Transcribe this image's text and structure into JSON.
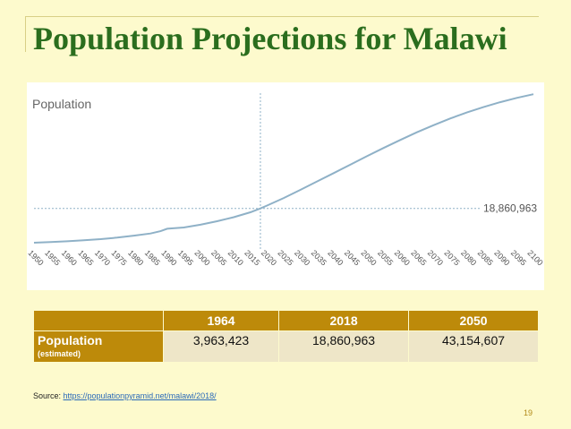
{
  "slide": {
    "title": "Population Projections for Malawi",
    "page_number": "19"
  },
  "source": {
    "prefix": "Source: ",
    "url_text": "https://populationpyramid.net/malawi/2018/"
  },
  "chart_data": {
    "type": "line",
    "title": "Population",
    "xlabel": "",
    "ylabel": "",
    "x_ticks": [
      "1950",
      "1955",
      "1960",
      "1965",
      "1970",
      "1975",
      "1980",
      "1985",
      "1990",
      "1995",
      "2000",
      "2005",
      "2010",
      "2015",
      "2020",
      "2025",
      "2030",
      "2035",
      "2040",
      "2045",
      "2050",
      "2055",
      "2060",
      "2065",
      "2070",
      "2075",
      "2080",
      "2085",
      "2090",
      "2095",
      "2100"
    ],
    "xlim": [
      1950,
      2100
    ],
    "ylim": [
      0,
      75000000
    ],
    "grid": false,
    "series": [
      {
        "values_x": [
          1950,
          1955,
          1960,
          1965,
          1970,
          1975,
          1980,
          1985,
          1988,
          1990,
          1995,
          2000,
          2005,
          2010,
          2015,
          2018,
          2020,
          2025,
          2030,
          2035,
          2040,
          2045,
          2050,
          2055,
          2060,
          2065,
          2070,
          2075,
          2080,
          2085,
          2090,
          2095,
          2100
        ],
        "values_y": [
          2900000,
          3200000,
          3600000,
          4100000,
          4600000,
          5300000,
          6200000,
          7200000,
          8300000,
          9400000,
          10000000,
          11300000,
          12900000,
          14800000,
          17100000,
          18860963,
          20200000,
          23700000,
          27500000,
          31400000,
          35300000,
          39200000,
          43154607,
          47000000,
          50700000,
          54300000,
          57600000,
          60700000,
          63500000,
          66000000,
          68300000,
          70300000,
          72000000
        ]
      }
    ],
    "annotations": [
      {
        "label": "18,860,963",
        "x": 2018,
        "y": 18860963
      }
    ],
    "colors": {
      "line": "#8fb1c7",
      "reference": "#8fb1c7",
      "text": "#666666"
    }
  },
  "table": {
    "headers": [
      "",
      "1964",
      "2018",
      "2050"
    ],
    "row_label": "Population",
    "row_sublabel": "(estimated)",
    "values": [
      "3,963,423",
      "18,860,963",
      "43,154,607"
    ]
  }
}
